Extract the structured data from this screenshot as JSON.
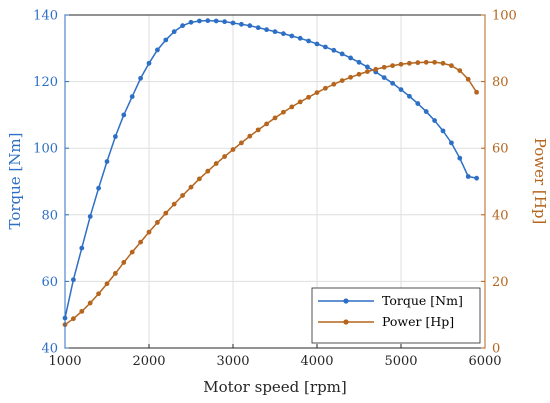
{
  "chart_data": {
    "type": "line",
    "title": "",
    "xlabel": "Motor speed [rpm]",
    "ylabel_left": "Torque [Nm]",
    "ylabel_right": "Power [Hp]",
    "xlim": [
      1000,
      6000
    ],
    "ylim_left": [
      40,
      140
    ],
    "ylim_right": [
      0,
      100
    ],
    "xticks": [
      1000,
      2000,
      3000,
      4000,
      5000,
      6000
    ],
    "yticks_left": [
      40,
      60,
      80,
      100,
      120,
      140
    ],
    "yticks_right": [
      0,
      20,
      40,
      60,
      80,
      100
    ],
    "grid": true,
    "legend_position": "bottom-right",
    "x": [
      1000,
      1100,
      1200,
      1300,
      1400,
      1500,
      1600,
      1700,
      1800,
      1900,
      2000,
      2100,
      2200,
      2300,
      2400,
      2500,
      2600,
      2700,
      2800,
      2900,
      3000,
      3100,
      3200,
      3300,
      3400,
      3500,
      3600,
      3700,
      3800,
      3900,
      4000,
      4100,
      4200,
      4300,
      4400,
      4500,
      4600,
      4700,
      4800,
      4900,
      5000,
      5100,
      5200,
      5300,
      5400,
      5500,
      5600,
      5700,
      5800,
      5900
    ],
    "series": [
      {
        "name": "Torque [Nm]",
        "axis": "left",
        "color": "#2e6fc6",
        "values": [
          49,
          60.5,
          70,
          79.5,
          88,
          96,
          103.5,
          110,
          115.5,
          121,
          125.5,
          129.5,
          132.5,
          135,
          136.8,
          137.8,
          138.2,
          138.3,
          138.2,
          138,
          137.6,
          137.2,
          136.8,
          136.2,
          135.6,
          135,
          134.4,
          133.7,
          133,
          132.2,
          131.3,
          130.4,
          129.4,
          128.3,
          127.1,
          125.8,
          124.4,
          122.9,
          121.2,
          119.5,
          117.6,
          115.6,
          113.4,
          111,
          108.3,
          105.2,
          101.6,
          97,
          91.5,
          91
        ]
      },
      {
        "name": "Power [Hp]",
        "axis": "right",
        "color": "#b5651d",
        "values": [
          7,
          8.8,
          11,
          13.5,
          16.3,
          19.3,
          22.4,
          25.7,
          28.8,
          31.8,
          34.8,
          37.7,
          40.5,
          43.2,
          45.8,
          48.3,
          50.8,
          53.1,
          55.4,
          57.5,
          59.6,
          61.6,
          63.6,
          65.5,
          67.3,
          69.1,
          70.8,
          72.4,
          73.9,
          75.3,
          76.7,
          78,
          79.2,
          80.3,
          81.3,
          82.2,
          83,
          83.7,
          84.3,
          84.8,
          85.2,
          85.5,
          85.7,
          85.8,
          85.8,
          85.5,
          84.8,
          83.3,
          80.7,
          76.8
        ]
      }
    ]
  }
}
